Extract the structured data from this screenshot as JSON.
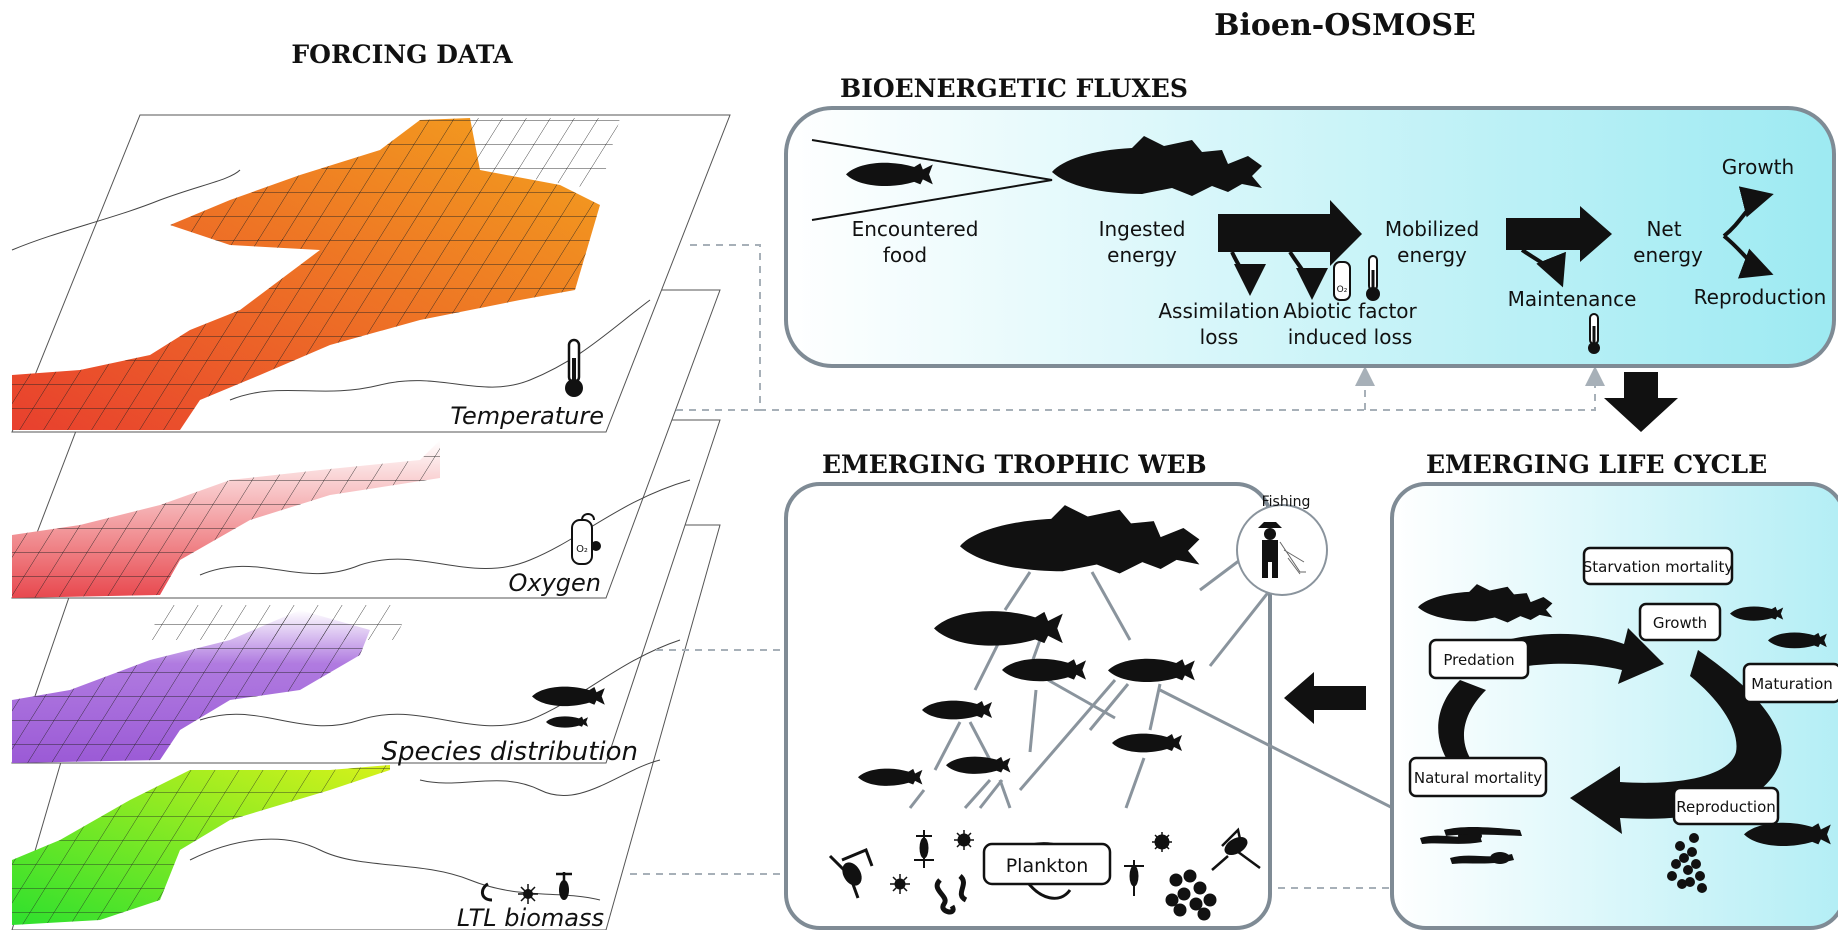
{
  "header": {
    "main_title": "Bioen-OSMOSE"
  },
  "forcing": {
    "title": "FORCING DATA",
    "layers": [
      {
        "label": "Temperature",
        "color": "#e8632c",
        "icon": "thermometer-icon"
      },
      {
        "label": "Oxygen",
        "color": "#ef8e8e",
        "icon": "oxygen-tank-icon"
      },
      {
        "label": "Species distribution",
        "color": "#a56ad8",
        "icon": "fish-pair-icon"
      },
      {
        "label": "LTL biomass",
        "color": "#7fe02a",
        "icon": "plankton-icon"
      }
    ]
  },
  "bioenergetic": {
    "title": "BIOENERGETIC FLUXES",
    "encountered": [
      "Encountered",
      "food"
    ],
    "ingested": [
      "Ingested",
      "energy"
    ],
    "mobilized": [
      "Mobilized",
      "energy"
    ],
    "net": [
      "Net",
      "energy"
    ],
    "growth": "Growth",
    "reproduction": "Reproduction",
    "maintenance": "Maintenance",
    "assimilation": [
      "Assimilation",
      "loss"
    ],
    "abiotic": [
      "Abiotic factor",
      "induced loss"
    ]
  },
  "trophic": {
    "title": "EMERGING TROPHIC WEB",
    "fishing": "Fishing",
    "plankton": "Plankton"
  },
  "lifecycle": {
    "title": "EMERGING LIFE CYCLE",
    "starvation": "Starvation mortality",
    "growth": "Growth",
    "predation": "Predation",
    "maturation": "Maturation",
    "natural": "Natural mortality",
    "reproduction": "Reproduction"
  },
  "colors": {
    "panel_border": "#7f8b95",
    "panel_fill": "#aeeef6",
    "dashed": "#a7b0b8"
  }
}
